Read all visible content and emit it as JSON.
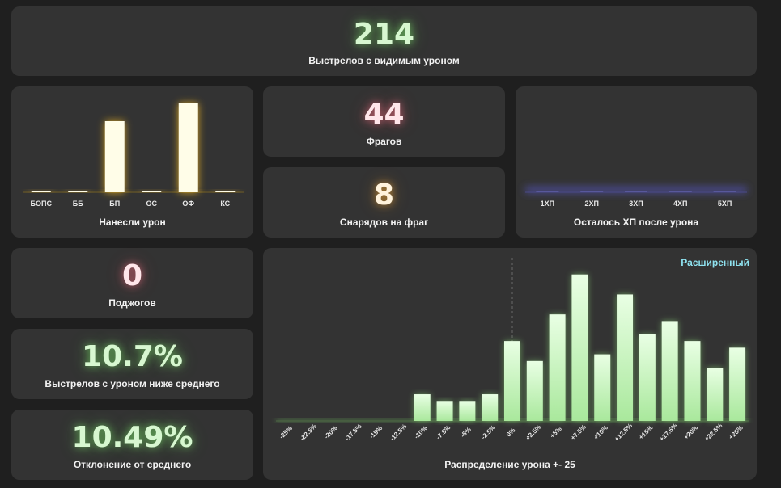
{
  "shots_visible_damage": {
    "value": "214",
    "label": "Выстрелов с видимым уроном"
  },
  "damage_dealt_chart": {
    "label": "Нанесли урон"
  },
  "frags": {
    "value": "44",
    "label": "Фрагов"
  },
  "shells_per_frag": {
    "value": "8",
    "label": "Снарядов на фраг"
  },
  "hp_left_chart": {
    "label": "Осталось ХП после урона"
  },
  "fires": {
    "value": "0",
    "label": "Поджогов"
  },
  "below_avg": {
    "value": "10.7%",
    "label": "Выстрелов с уроном ниже среднего"
  },
  "deviation": {
    "value": "10.49%",
    "label": "Отклонение от среднего"
  },
  "distribution": {
    "label": "Распределение урона +- 25",
    "extended_link": "Расширенный"
  },
  "colors": {
    "bar_gold": "#fffde8",
    "bar_gold_glow": "#e8b020",
    "bar_green_top": "#e9ffe4",
    "bar_green_bottom": "#a9e89c",
    "hp_glow": "#5a5ad0"
  },
  "chart_data": [
    {
      "type": "bar",
      "title": "Нанесли урон",
      "categories": [
        "БОПС",
        "ББ",
        "БП",
        "ОС",
        "ОФ",
        "КС"
      ],
      "values": [
        0,
        0,
        88,
        0,
        110,
        0
      ],
      "ylim": [
        0,
        115
      ],
      "grid": false
    },
    {
      "type": "bar",
      "title": "Осталось ХП после урона",
      "categories": [
        "1ХП",
        "2ХП",
        "3ХП",
        "4ХП",
        "5ХП"
      ],
      "values": [
        0,
        0,
        0,
        0,
        0
      ],
      "grid": false
    },
    {
      "type": "bar",
      "title": "Распределение урона +- 25",
      "categories": [
        "-25%",
        "-22.5%",
        "-20%",
        "-17.5%",
        "-15%",
        "-12.5%",
        "-10%",
        "-7.5%",
        "-5%",
        "-2.5%",
        "0%",
        "+2.5%",
        "+5%",
        "+7.5%",
        "+10%",
        "+12.5%",
        "+15%",
        "+17.5%",
        "+20%",
        "+22.5%",
        "+25%"
      ],
      "values": [
        0,
        0,
        0,
        0,
        0,
        0,
        8,
        6,
        6,
        8,
        24,
        18,
        32,
        44,
        20,
        38,
        26,
        30,
        24,
        16,
        22
      ],
      "ylim": [
        0,
        50
      ],
      "grid": false
    }
  ]
}
